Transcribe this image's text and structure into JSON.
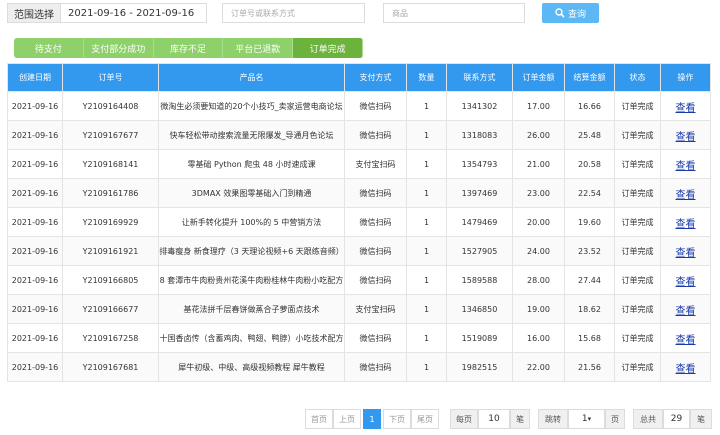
{
  "filter": {
    "range_label": "范围选择",
    "date_range": "2021-09-16 - 2021-09-16",
    "order_placeholder": "订单号或联系方式",
    "product_placeholder": "商品",
    "search_button": "查询"
  },
  "tabs": [
    "待支付",
    "支付部分成功",
    "库存不足",
    "平台已退款",
    "订单完成"
  ],
  "table": {
    "headers": [
      "创建日期",
      "订单号",
      "产品名",
      "支付方式",
      "数量",
      "联系方式",
      "订单金额",
      "结算金额",
      "状态",
      "操作"
    ],
    "rows": [
      [
        "2021-09-16",
        [
          "Y210916",
          "4408"
        ],
        "微淘生必须要知道的20个小技巧_卖家运营电商论坛",
        "微信扫码",
        "1",
        [
          "134",
          "1302"
        ],
        "17.00",
        "16.66",
        "订单完成",
        "查看"
      ],
      [
        "2021-09-16",
        [
          "Y210916",
          "7677"
        ],
        "快车轻松带动搜索流量无限爆发_导通月色论坛",
        "微信扫码",
        "1",
        [
          "131",
          "8083"
        ],
        "26.00",
        "25.48",
        "订单完成",
        "查看"
      ],
      [
        "2021-09-16",
        [
          "Y210916",
          "8141"
        ],
        "零基础 Python 爬虫 48 小时速成课",
        "支付宝扫码",
        "1",
        [
          "135",
          "4793"
        ],
        "21.00",
        "20.58",
        "订单完成",
        "查看"
      ],
      [
        "2021-09-16",
        [
          "Y210916",
          "1786"
        ],
        "3DMAX 效果图零基础入门到精通",
        "微信扫码",
        "1",
        [
          "139",
          "7469"
        ],
        "23.00",
        "22.54",
        "订单完成",
        "查看"
      ],
      [
        "2021-09-16",
        [
          "Y210916",
          "9929"
        ],
        "让新手转化提升 100%的 5 中营销方法",
        "微信扫码",
        "1",
        [
          "147",
          "9469"
        ],
        "20.00",
        "19.60",
        "订单完成",
        "查看"
      ],
      [
        "2021-09-16",
        [
          "Y210916",
          "1921"
        ],
        "排毒瘦身 新食理疗（3 天理论视频+6 天跟练音频）",
        "微信扫码",
        "1",
        [
          "152",
          "7905"
        ],
        "24.00",
        "23.52",
        "订单完成",
        "查看"
      ],
      [
        "2021-09-16",
        [
          "Y210916",
          "6805"
        ],
        "8 套潭市牛肉粉贵州花溪牛肉粉桂林牛肉粉小吃配方",
        "微信扫码",
        "1",
        [
          "158",
          "9588"
        ],
        "28.00",
        "27.44",
        "订单完成",
        "查看"
      ],
      [
        "2021-09-16",
        [
          "Y210916",
          "6677"
        ],
        "基花法拼千层春饼做蒸合子萝面点技术",
        "支付宝扫码",
        "1",
        [
          "134",
          "6850"
        ],
        "19.00",
        "18.62",
        "订单完成",
        "查看"
      ],
      [
        "2021-09-16",
        [
          "Y210916",
          "7258"
        ],
        "十国香卤传（含蓄鸡肉、鸭翅、鸭脖）小吃技术配方",
        "微信扫码",
        "1",
        [
          "151",
          "9089"
        ],
        "16.00",
        "15.68",
        "订单完成",
        "查看"
      ],
      [
        "2021-09-16",
        [
          "Y210916",
          "7681"
        ],
        "犀牛初级、中级、高级视频教程 犀牛教程",
        "微信扫码",
        "1",
        [
          "198",
          "2515"
        ],
        "22.00",
        "21.56",
        "订单完成",
        "查看"
      ]
    ]
  },
  "pagination": {
    "first": "首页",
    "prev": "上页",
    "current": "1",
    "next": "下页",
    "last": "尾页",
    "per_page_label": "每页",
    "per_page": "10",
    "per_page_unit": "笔",
    "jump_label": "跳转",
    "jump_value": "1",
    "jump_unit": "页",
    "total_label": "总共",
    "total": "29",
    "total_unit": "笔"
  }
}
